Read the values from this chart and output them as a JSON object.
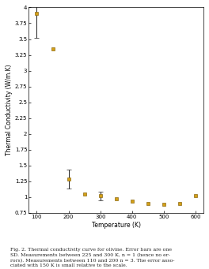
{
  "xlabel": "Temperature (K)",
  "ylabel": "Thermal Conductivity (W/m.K)",
  "temperatures": [
    100,
    150,
    200,
    250,
    300,
    350,
    400,
    450,
    500,
    550,
    600
  ],
  "conductivity": [
    3.9,
    3.35,
    1.28,
    1.05,
    1.02,
    0.97,
    0.93,
    0.9,
    0.88,
    0.9,
    1.02
  ],
  "error_low": [
    0.38,
    0.0,
    0.15,
    0.0,
    0.07,
    0.0,
    0.0,
    0.0,
    0.0,
    0.0,
    0.0
  ],
  "error_high": [
    0.38,
    0.0,
    0.15,
    0.0,
    0.07,
    0.0,
    0.0,
    0.0,
    0.0,
    0.0,
    0.0
  ],
  "marker_color": "#D4A017",
  "marker_edge_color": "#8B6914",
  "ylim": [
    0.75,
    4.0
  ],
  "xlim": [
    75,
    625
  ],
  "ytick_vals": [
    0.75,
    1.0,
    1.25,
    1.5,
    1.75,
    2.0,
    2.25,
    2.5,
    2.75,
    3.0,
    3.25,
    3.5,
    3.75,
    4.0
  ],
  "ytick_labels": [
    "0.75",
    "1",
    "1.25",
    "1.5",
    "1.75",
    "2",
    "2.25",
    "2.5",
    "2.75",
    "3",
    "3.25",
    "3.5",
    "3.75",
    "4"
  ],
  "xticks": [
    100,
    200,
    300,
    400,
    500,
    600
  ],
  "background": "#ffffff",
  "caption_line1": "Fig. 2. Thermal conductivity curve for olivine. Error bars are one",
  "caption_line2": "SD. Measurements between 225 and 300 K, n = 1 (hence no er-",
  "caption_line3": "rors). Measurements between 110 and 200 n = 3. The error asso-",
  "caption_line4": "ciated with 150 K is small relative to the scale."
}
